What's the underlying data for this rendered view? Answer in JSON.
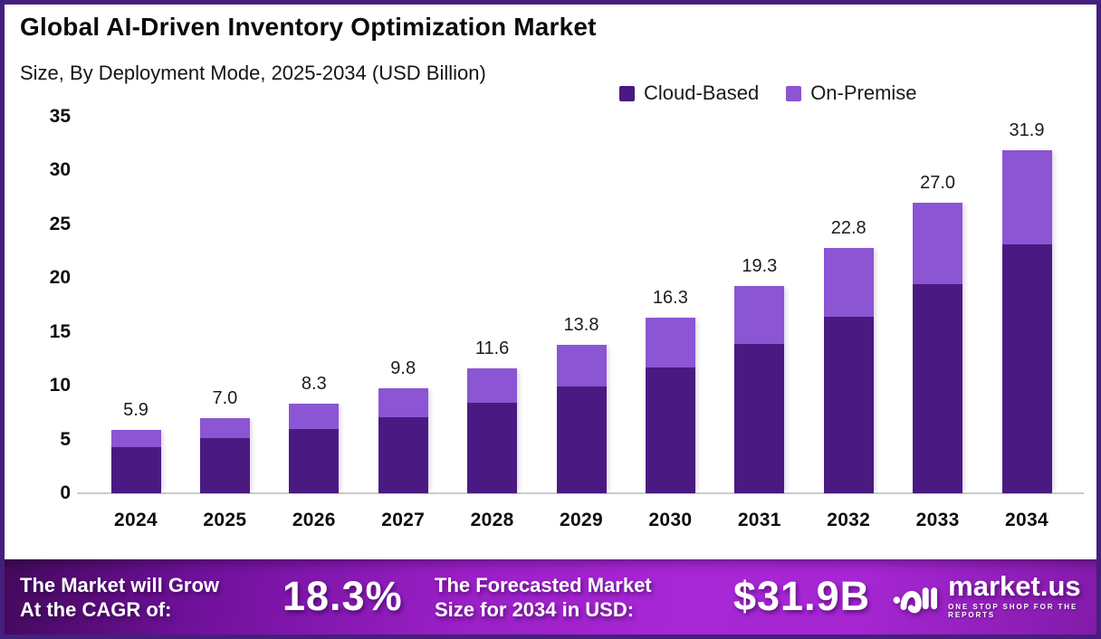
{
  "frame": {
    "border_color": "#451f7d",
    "background": "#ffffff"
  },
  "header": {
    "title": "Global AI-Driven Inventory Optimization Market",
    "subtitle": "Size, By Deployment Mode, 2025-2034 (USD Billion)"
  },
  "legend": [
    {
      "label": "Cloud-Based",
      "color": "#4A1A82"
    },
    {
      "label": "On-Premise",
      "color": "#8B55D3"
    }
  ],
  "chart_data": {
    "type": "bar",
    "stacked": true,
    "title": "Global AI-Driven Inventory Optimization Market",
    "subtitle": "Size, By Deployment Mode, 2025-2034 (USD Billion)",
    "categories": [
      "2024",
      "2025",
      "2026",
      "2027",
      "2028",
      "2029",
      "2030",
      "2031",
      "2032",
      "2033",
      "2034"
    ],
    "series": [
      {
        "name": "Cloud-Based",
        "color": "#4A1A82",
        "values": [
          4.3,
          5.1,
          6.0,
          7.1,
          8.4,
          9.9,
          11.7,
          13.9,
          16.4,
          19.4,
          23.1
        ]
      },
      {
        "name": "On-Premise",
        "color": "#8B55D3",
        "values": [
          1.6,
          1.9,
          2.3,
          2.7,
          3.2,
          3.9,
          4.6,
          5.4,
          6.4,
          7.6,
          8.8
        ]
      }
    ],
    "totals": [
      5.9,
      7.0,
      8.3,
      9.8,
      11.6,
      13.8,
      16.3,
      19.3,
      22.8,
      27.0,
      31.9
    ],
    "total_labels": [
      "5.9",
      "7.0",
      "8.3",
      "9.8",
      "11.6",
      "13.8",
      "16.3",
      "19.3",
      "22.8",
      "27.0",
      "31.9"
    ],
    "y_ticks": [
      0,
      5,
      10,
      15,
      20,
      25,
      30,
      35
    ],
    "ylim": [
      0,
      35
    ],
    "xlabel": "",
    "ylabel": "",
    "grid": false,
    "legend_position": "top-right"
  },
  "banner": {
    "cagr_label_line1": "The Market will Grow",
    "cagr_label_line2": "At the CAGR of:",
    "cagr_value": "18.3%",
    "forecast_label_line1": "The Forecasted Market",
    "forecast_label_line2": "Size for 2034 in USD:",
    "forecast_value": "$31.9B",
    "logo_text": "market.us",
    "logo_tagline": "ONE STOP SHOP FOR THE REPORTS"
  }
}
